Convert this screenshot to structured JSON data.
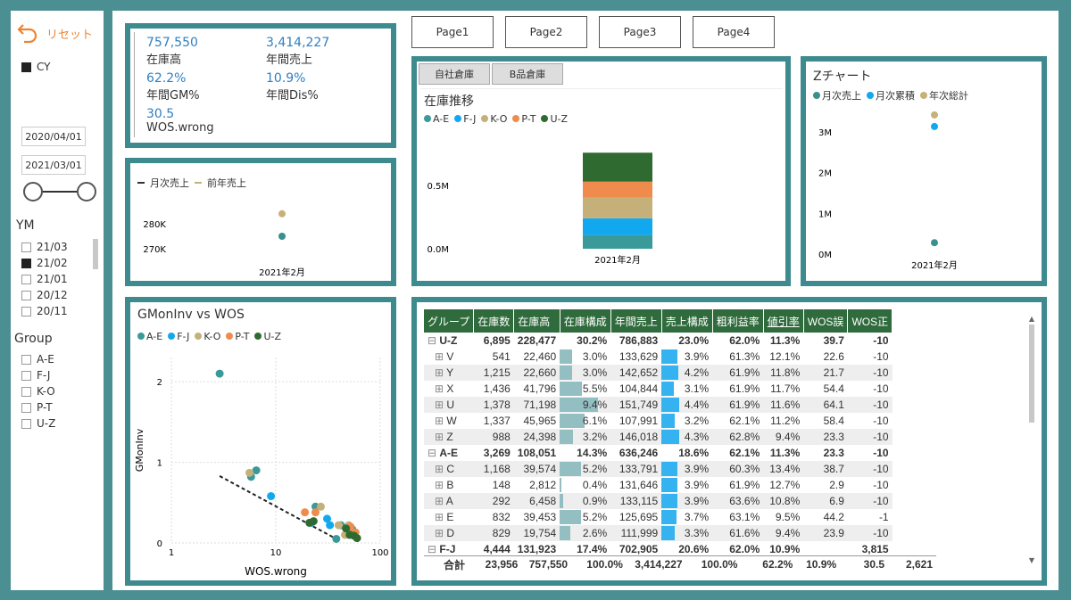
{
  "sidebar": {
    "reset_label": "リセット",
    "cy_label": "CY",
    "date_from": "2020/04/01",
    "date_to": "2021/03/01",
    "ym_title": "YM",
    "ym_items": [
      {
        "label": "21/03",
        "checked": false
      },
      {
        "label": "21/02",
        "checked": true
      },
      {
        "label": "21/01",
        "checked": false
      },
      {
        "label": "20/12",
        "checked": false
      },
      {
        "label": "20/11",
        "checked": false
      }
    ],
    "group_title": "Group",
    "group_items": [
      "A-E",
      "F-J",
      "K-O",
      "P-T",
      "U-Z"
    ]
  },
  "kpi": {
    "items": [
      {
        "value": "757,550",
        "label": "在庫高"
      },
      {
        "value": "3,414,227",
        "label": "年間売上"
      },
      {
        "value": "62.2%",
        "label": "年間GM%"
      },
      {
        "value": "10.9%",
        "label": "年間Dis%"
      },
      {
        "value": "30.5",
        "label": "WOS.wrong"
      }
    ]
  },
  "pages": [
    "Page1",
    "Page2",
    "Page3",
    "Page4"
  ],
  "sales_chart": {
    "legend": [
      "月次売上",
      "前年売上"
    ],
    "colors": [
      "#3a8f8f",
      "#c8b07a"
    ],
    "chart_data": {
      "type": "scatter",
      "categories": [
        "2021年2月"
      ],
      "series": [
        {
          "name": "月次売上",
          "values": [
            275000
          ]
        },
        {
          "name": "前年売上",
          "values": [
            284000
          ]
        }
      ],
      "y_ticks": [
        "280K",
        "270K"
      ],
      "ylim": [
        265000,
        290000
      ]
    }
  },
  "inventory": {
    "tabs": [
      "自社倉庫",
      "B品倉庫"
    ],
    "title": "在庫推移",
    "legend": [
      {
        "name": "A-E",
        "color": "#3a9a9a"
      },
      {
        "name": "F-J",
        "color": "#12a8f0"
      },
      {
        "name": "K-O",
        "color": "#c5b07a"
      },
      {
        "name": "P-T",
        "color": "#ef8b4c"
      },
      {
        "name": "U-Z",
        "color": "#2f6b30"
      }
    ],
    "chart_data": {
      "type": "bar",
      "stacked": true,
      "categories": [
        "2021年2月"
      ],
      "series": [
        {
          "name": "A-E",
          "values": [
            108051
          ]
        },
        {
          "name": "F-J",
          "values": [
            131923
          ]
        },
        {
          "name": "K-O",
          "values": [
            162000
          ]
        },
        {
          "name": "P-T",
          "values": [
            127000
          ]
        },
        {
          "name": "U-Z",
          "values": [
            228477
          ]
        }
      ],
      "y_ticks": [
        "0.5M",
        "0.0M"
      ],
      "ylim": [
        0,
        900000
      ]
    }
  },
  "zchart": {
    "title": "Zチャート",
    "legend": [
      {
        "name": "月次売上",
        "color": "#3a8f8f"
      },
      {
        "name": "月次累積",
        "color": "#12a8f0"
      },
      {
        "name": "年次総計",
        "color": "#c8b07a"
      }
    ],
    "chart_data": {
      "type": "scatter",
      "categories": [
        "2021年2月"
      ],
      "series": [
        {
          "name": "月次売上",
          "values": [
            280000
          ]
        },
        {
          "name": "月次累積",
          "values": [
            3130000
          ]
        },
        {
          "name": "年次総計",
          "values": [
            3414227
          ]
        }
      ],
      "y_ticks": [
        "3M",
        "2M",
        "1M",
        "0M"
      ],
      "ylim": [
        0,
        3500000
      ]
    }
  },
  "scatter": {
    "title": "GMonInv vs WOS",
    "xlabel": "WOS.wrong",
    "ylabel": "GMonInv",
    "legend": [
      {
        "name": "A-E",
        "color": "#3a9a9a"
      },
      {
        "name": "F-J",
        "color": "#12a8f0"
      },
      {
        "name": "K-O",
        "color": "#c5b07a"
      },
      {
        "name": "P-T",
        "color": "#ef8b4c"
      },
      {
        "name": "U-Z",
        "color": "#2f6b30"
      }
    ],
    "chart_data": {
      "type": "scatter",
      "x_scale": "log",
      "xlim": [
        1,
        100
      ],
      "ylim": [
        0,
        2.3
      ],
      "x_ticks": [
        "1",
        "10",
        "100"
      ],
      "y_ticks": [
        "2",
        "1",
        "0"
      ],
      "points": [
        {
          "x": 2.9,
          "y": 2.1,
          "g": "A-E"
        },
        {
          "x": 6.5,
          "y": 0.9,
          "g": "A-E"
        },
        {
          "x": 5.8,
          "y": 0.82,
          "g": "A-E"
        },
        {
          "x": 38,
          "y": 0.05,
          "g": "A-E"
        },
        {
          "x": 24,
          "y": 0.45,
          "g": "A-E"
        },
        {
          "x": 42,
          "y": 0.22,
          "g": "A-E"
        },
        {
          "x": 54,
          "y": 0.17,
          "g": "A-E"
        },
        {
          "x": 9,
          "y": 0.58,
          "g": "F-J"
        },
        {
          "x": 31,
          "y": 0.3,
          "g": "F-J"
        },
        {
          "x": 22,
          "y": 0.25,
          "g": "F-J"
        },
        {
          "x": 33,
          "y": 0.22,
          "g": "F-J"
        },
        {
          "x": 5.6,
          "y": 0.87,
          "g": "K-O"
        },
        {
          "x": 27,
          "y": 0.45,
          "g": "K-O"
        },
        {
          "x": 40,
          "y": 0.22,
          "g": "K-O"
        },
        {
          "x": 46,
          "y": 0.1,
          "g": "K-O"
        },
        {
          "x": 50,
          "y": 0.22,
          "g": "K-O"
        },
        {
          "x": 19,
          "y": 0.38,
          "g": "P-T"
        },
        {
          "x": 24,
          "y": 0.38,
          "g": "P-T"
        },
        {
          "x": 52,
          "y": 0.2,
          "g": "P-T"
        },
        {
          "x": 58,
          "y": 0.13,
          "g": "P-T"
        },
        {
          "x": 21,
          "y": 0.25,
          "g": "U-Z"
        },
        {
          "x": 23,
          "y": 0.27,
          "g": "U-Z"
        },
        {
          "x": 47,
          "y": 0.18,
          "g": "U-Z"
        },
        {
          "x": 51,
          "y": 0.1,
          "g": "U-Z"
        },
        {
          "x": 56,
          "y": 0.09,
          "g": "U-Z"
        },
        {
          "x": 60,
          "y": 0.06,
          "g": "U-Z"
        }
      ],
      "trend": [
        [
          2.9,
          0.83
        ],
        [
          38,
          0.05
        ]
      ]
    }
  },
  "table": {
    "headers": [
      "グループ",
      "在庫数",
      "在庫高",
      "在庫構成",
      "年間売上",
      "売上構成",
      "粗利益率",
      "値引率",
      "WOS誤",
      "WOS正"
    ],
    "rows": [
      {
        "group": true,
        "name": "U-Z",
        "cells": [
          "6,895",
          "228,477",
          "30.2%",
          "786,883",
          "23.0%",
          "62.0%",
          "11.3%",
          "39.7",
          "-10"
        ],
        "inv": 30.2,
        "sal": 23.0
      },
      {
        "name": "V",
        "cells": [
          "541",
          "22,460",
          "3.0%",
          "133,629",
          "3.9%",
          "61.3%",
          "12.1%",
          "22.6",
          "-10"
        ],
        "inv": 3.0,
        "sal": 3.9
      },
      {
        "name": "Y",
        "cells": [
          "1,215",
          "22,660",
          "3.0%",
          "142,652",
          "4.2%",
          "61.9%",
          "11.8%",
          "21.7",
          "-10"
        ],
        "inv": 3.0,
        "sal": 4.2
      },
      {
        "name": "X",
        "cells": [
          "1,436",
          "41,796",
          "5.5%",
          "104,844",
          "3.1%",
          "61.9%",
          "11.7%",
          "54.4",
          "-10"
        ],
        "inv": 5.5,
        "sal": 3.1
      },
      {
        "name": "U",
        "cells": [
          "1,378",
          "71,198",
          "9.4%",
          "151,749",
          "4.4%",
          "61.9%",
          "11.6%",
          "64.1",
          "-10"
        ],
        "inv": 9.4,
        "sal": 4.4
      },
      {
        "name": "W",
        "cells": [
          "1,337",
          "45,965",
          "6.1%",
          "107,991",
          "3.2%",
          "62.1%",
          "11.2%",
          "58.4",
          "-10"
        ],
        "inv": 6.1,
        "sal": 3.2
      },
      {
        "name": "Z",
        "cells": [
          "988",
          "24,398",
          "3.2%",
          "146,018",
          "4.3%",
          "62.8%",
          "9.4%",
          "23.3",
          "-10"
        ],
        "inv": 3.2,
        "sal": 4.3
      },
      {
        "group": true,
        "name": "A-E",
        "cells": [
          "3,269",
          "108,051",
          "14.3%",
          "636,246",
          "18.6%",
          "62.1%",
          "11.3%",
          "23.3",
          "-10"
        ],
        "inv": 14.3,
        "sal": 18.6
      },
      {
        "name": "C",
        "cells": [
          "1,168",
          "39,574",
          "5.2%",
          "133,791",
          "3.9%",
          "60.3%",
          "13.4%",
          "38.7",
          "-10"
        ],
        "inv": 5.2,
        "sal": 3.9
      },
      {
        "name": "B",
        "cells": [
          "148",
          "2,812",
          "0.4%",
          "131,646",
          "3.9%",
          "61.9%",
          "12.7%",
          "2.9",
          "-10"
        ],
        "inv": 0.4,
        "sal": 3.9
      },
      {
        "name": "A",
        "cells": [
          "292",
          "6,458",
          "0.9%",
          "133,115",
          "3.9%",
          "63.6%",
          "10.8%",
          "6.9",
          "-10"
        ],
        "inv": 0.9,
        "sal": 3.9
      },
      {
        "name": "E",
        "cells": [
          "832",
          "39,453",
          "5.2%",
          "125,695",
          "3.7%",
          "63.1%",
          "9.5%",
          "44.2",
          "-1"
        ],
        "inv": 5.2,
        "sal": 3.7
      },
      {
        "name": "D",
        "cells": [
          "829",
          "19,754",
          "2.6%",
          "111,999",
          "3.3%",
          "61.6%",
          "9.4%",
          "23.9",
          "-10"
        ],
        "inv": 2.6,
        "sal": 3.3
      },
      {
        "group": true,
        "name": "F-J",
        "cells": [
          "4,444",
          "131,923",
          "17.4%",
          "702,905",
          "20.6%",
          "62.0%",
          "10.9%",
          "",
          "3,815"
        ],
        "inv": 17.4,
        "sal": 20.6
      }
    ],
    "total": {
      "name": "合計",
      "cells": [
        "23,956",
        "757,550",
        "100.0%",
        "3,414,227",
        "100.0%",
        "62.2%",
        "10.9%",
        "30.5",
        "2,621"
      ]
    }
  }
}
